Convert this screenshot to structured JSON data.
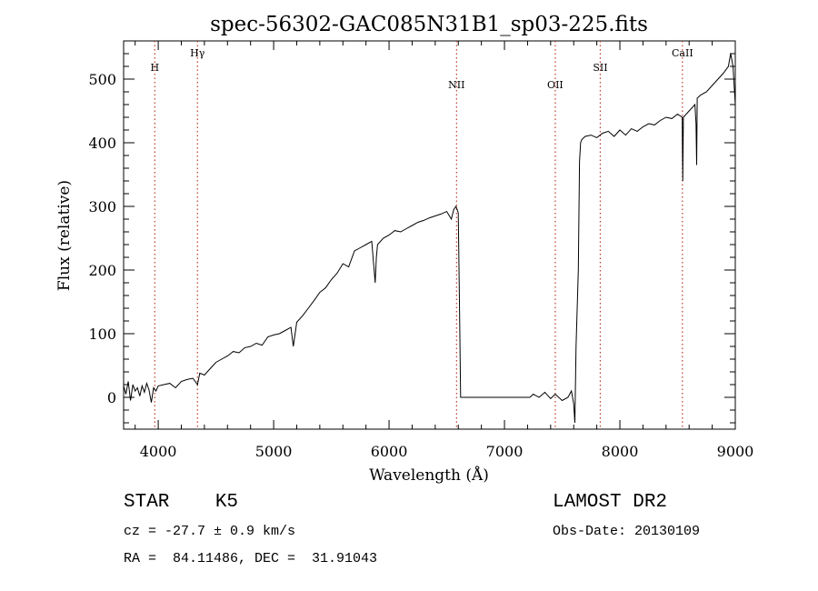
{
  "chart_data": {
    "type": "line",
    "title": "spec-56302-GAC085N31B1_sp03-225.fits",
    "xlabel": "Wavelength (Å)",
    "ylabel": "Flux (relative)",
    "xlim": [
      3700,
      9000
    ],
    "ylim": [
      -50,
      560
    ],
    "xticks": [
      4000,
      5000,
      6000,
      7000,
      8000,
      9000
    ],
    "yticks": [
      0,
      100,
      200,
      300,
      400,
      500
    ],
    "lines": [
      {
        "label": "H",
        "x": 3970
      },
      {
        "label": "Hγ",
        "x": 4340
      },
      {
        "label": "NII",
        "x": 6585
      },
      {
        "label": "OII",
        "x": 7440
      },
      {
        "label": "SII",
        "x": 7830
      },
      {
        "label": "CaII",
        "x": 8542
      }
    ],
    "series": [
      {
        "x": [
          3700,
          3720,
          3740,
          3760,
          3780,
          3800,
          3820,
          3840,
          3860,
          3880,
          3900,
          3920,
          3940,
          3960,
          3980,
          4000,
          4050,
          4100,
          4150,
          4200,
          4250,
          4300,
          4340,
          4360,
          4400,
          4450,
          4500,
          4550,
          4600,
          4650,
          4700,
          4750,
          4800,
          4850,
          4900,
          4950,
          5000,
          5050,
          5100,
          5150,
          5170,
          5200,
          5250,
          5300,
          5350,
          5400,
          5450,
          5500,
          5550,
          5600,
          5650,
          5700,
          5750,
          5800,
          5850,
          5880,
          5890,
          5900,
          5950,
          6000,
          6050,
          6100,
          6150,
          6200,
          6250,
          6300,
          6350,
          6400,
          6450,
          6500,
          6540,
          6560,
          6580,
          6600,
          6610,
          6620,
          6650,
          6700,
          6800,
          6900,
          7000,
          7100,
          7150,
          7200,
          7220,
          7250,
          7300,
          7350,
          7400,
          7440,
          7500,
          7550,
          7580,
          7600,
          7610,
          7620,
          7640,
          7650,
          7660,
          7670,
          7700,
          7750,
          7800,
          7850,
          7900,
          7950,
          8000,
          8050,
          8100,
          8150,
          8200,
          8250,
          8300,
          8350,
          8400,
          8450,
          8500,
          8540,
          8545,
          8550,
          8600,
          8650,
          8660,
          8665,
          8670,
          8700,
          8750,
          8800,
          8850,
          8900,
          8940,
          8960,
          8980,
          9000
        ],
        "y": [
          18,
          5,
          25,
          -5,
          20,
          10,
          15,
          2,
          18,
          8,
          22,
          12,
          -8,
          15,
          10,
          18,
          20,
          22,
          15,
          25,
          28,
          30,
          20,
          38,
          35,
          45,
          55,
          60,
          65,
          72,
          70,
          78,
          80,
          85,
          82,
          95,
          98,
          100,
          105,
          110,
          80,
          118,
          128,
          140,
          152,
          165,
          172,
          185,
          195,
          210,
          205,
          230,
          235,
          240,
          245,
          180,
          220,
          240,
          250,
          255,
          262,
          260,
          265,
          270,
          275,
          278,
          282,
          285,
          288,
          292,
          280,
          295,
          300,
          290,
          150,
          0,
          0,
          0,
          0,
          0,
          0,
          0,
          0,
          0,
          0,
          5,
          0,
          8,
          -2,
          5,
          -5,
          0,
          10,
          -10,
          -40,
          80,
          200,
          370,
          400,
          405,
          410,
          412,
          408,
          415,
          418,
          410,
          420,
          412,
          422,
          418,
          425,
          430,
          428,
          435,
          440,
          438,
          445,
          440,
          340,
          440,
          450,
          460,
          430,
          365,
          470,
          475,
          480,
          490,
          500,
          510,
          520,
          540,
          520,
          460
        ]
      }
    ]
  },
  "info": {
    "class_line": "STAR    K5",
    "survey": "LAMOST DR2",
    "cz": "cz = -27.7 ± 0.9 km/s",
    "obs_date": "Obs-Date: 20130109",
    "coords": "RA =  84.11486, DEC =  31.91043"
  }
}
